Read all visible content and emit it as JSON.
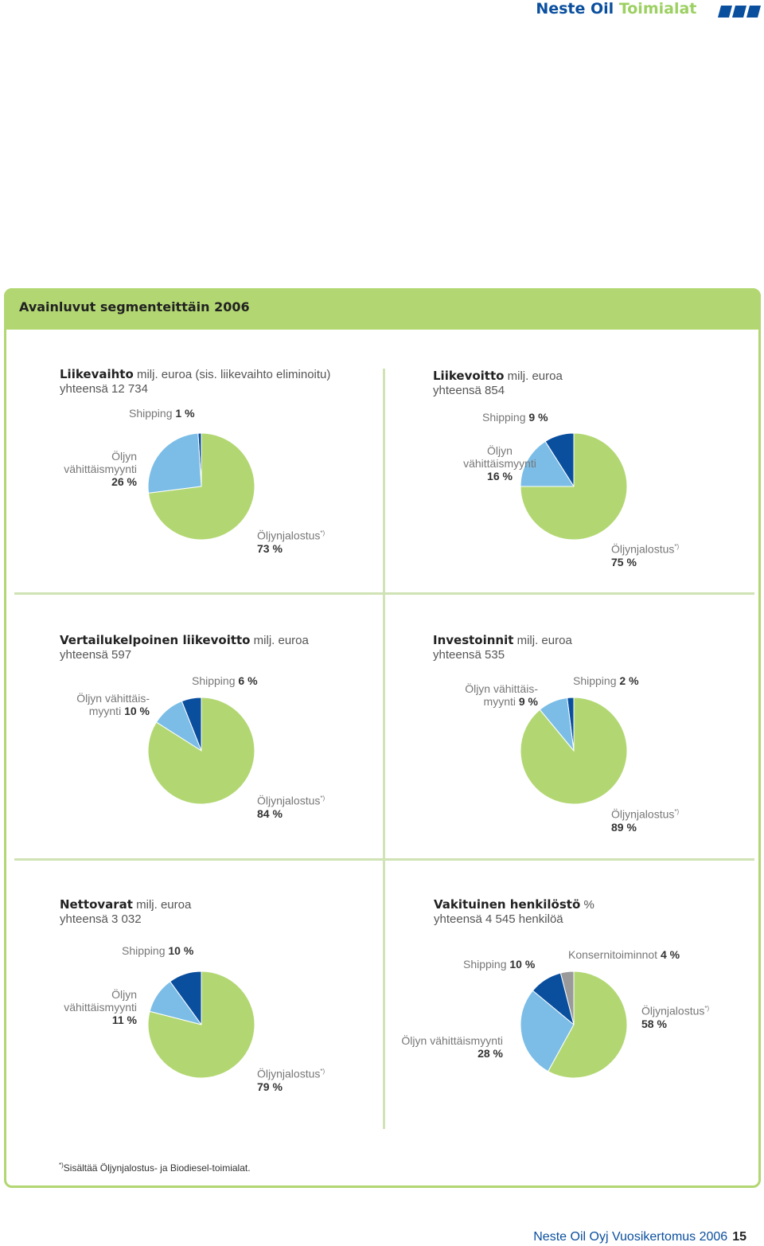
{
  "header": {
    "brand": "Neste Oil",
    "section": "Toimialat"
  },
  "panel_title": "Avainluvut segmenteittäin 2006",
  "chart_data": [
    {
      "type": "pie",
      "title": "Liikevaihto",
      "unit": "milj. euroa (sis. liikevaihto eliminoitu)",
      "total_label": "yhteensä 12 734",
      "slices": [
        {
          "name": "Shipping",
          "label1": "Shipping",
          "label2": "",
          "pct_label": "1 %",
          "value": 1,
          "color": "#0a4f9e"
        },
        {
          "name": "Öljyn vähittäismyynti",
          "label1": "Öljyn",
          "label2": "vähittäismyynti",
          "pct_label": "26 %",
          "value": 26,
          "color": "#7bbde6"
        },
        {
          "name": "Öljynjalostus",
          "label1": "Öljynjalostus",
          "label2": "",
          "pct_label": "73 %",
          "value": 73,
          "color": "#b2d772",
          "sup": "*)"
        }
      ]
    },
    {
      "type": "pie",
      "title": "Liikevoitto",
      "unit": "milj. euroa",
      "total_label": "yhteensä 854",
      "slices": [
        {
          "name": "Shipping",
          "label1": "Shipping",
          "label2": "",
          "pct_label": "9 %",
          "value": 9,
          "color": "#0a4f9e"
        },
        {
          "name": "Öljyn vähittäismyynti",
          "label1": "Öljyn",
          "label2": "vähittäismyynti",
          "pct_label": "16 %",
          "value": 16,
          "color": "#7bbde6"
        },
        {
          "name": "Öljynjalostus",
          "label1": "Öljynjalostus",
          "label2": "",
          "pct_label": "75 %",
          "value": 75,
          "color": "#b2d772",
          "sup": "*)"
        }
      ]
    },
    {
      "type": "pie",
      "title": "Vertailukelpoinen liikevoitto",
      "unit": "milj. euroa",
      "total_label": "yhteensä 597",
      "slices": [
        {
          "name": "Shipping",
          "label1": "Shipping",
          "label2": "",
          "pct_label": "6 %",
          "value": 6,
          "color": "#0a4f9e"
        },
        {
          "name": "Öljyn vähittäismyynti",
          "label1": "Öljyn vähittäis-",
          "label2": "myynti",
          "pct_label": "10 %",
          "value": 10,
          "color": "#7bbde6"
        },
        {
          "name": "Öljynjalostus",
          "label1": "Öljynjalostus",
          "label2": "",
          "pct_label": "84 %",
          "value": 84,
          "color": "#b2d772",
          "sup": "*)"
        }
      ]
    },
    {
      "type": "pie",
      "title": "Investoinnit",
      "unit": "milj. euroa",
      "total_label": "yhteensä 535",
      "slices": [
        {
          "name": "Shipping",
          "label1": "Shipping",
          "label2": "",
          "pct_label": "2 %",
          "value": 2,
          "color": "#0a4f9e"
        },
        {
          "name": "Öljyn vähittäismyynti",
          "label1": "Öljyn vähittäis-",
          "label2": "myynti",
          "pct_label": "9 %",
          "value": 9,
          "color": "#7bbde6"
        },
        {
          "name": "Öljynjalostus",
          "label1": "Öljynjalostus",
          "label2": "",
          "pct_label": "89 %",
          "value": 89,
          "color": "#b2d772",
          "sup": "*)"
        }
      ]
    },
    {
      "type": "pie",
      "title": "Nettovarat",
      "unit": "milj. euroa",
      "total_label": "yhteensä 3 032",
      "slices": [
        {
          "name": "Shipping",
          "label1": "Shipping",
          "label2": "",
          "pct_label": "10 %",
          "value": 10,
          "color": "#0a4f9e"
        },
        {
          "name": "Öljyn vähittäismyynti",
          "label1": "Öljyn",
          "label2": "vähittäismyynti",
          "pct_label": "11 %",
          "value": 11,
          "color": "#7bbde6"
        },
        {
          "name": "Öljynjalostus",
          "label1": "Öljynjalostus",
          "label2": "",
          "pct_label": "79 %",
          "value": 79,
          "color": "#b2d772",
          "sup": "*)"
        }
      ]
    },
    {
      "type": "pie",
      "title": "Vakituinen henkilöstö",
      "unit": "%",
      "total_label": "yhteensä 4 545 henkilöä",
      "slices": [
        {
          "name": "Konsernitoiminnot",
          "label1": "Konsernitoiminnot",
          "label2": "",
          "pct_label": "4 %",
          "value": 4,
          "color": "#9a9a9a"
        },
        {
          "name": "Shipping",
          "label1": "Shipping",
          "label2": "",
          "pct_label": "10 %",
          "value": 10,
          "color": "#0a4f9e"
        },
        {
          "name": "Öljyn vähittäismyynti",
          "label1": "Öljyn vähittäismyynti",
          "label2": "",
          "pct_label": "28 %",
          "value": 28,
          "color": "#7bbde6"
        },
        {
          "name": "Öljynjalostus",
          "label1": "Öljynjalostus",
          "label2": "",
          "pct_label": "58 %",
          "value": 58,
          "color": "#b2d772",
          "sup": "*)"
        }
      ]
    }
  ],
  "footnote": {
    "sup": "*)",
    "text": "Sisältää Öljynjalostus- ja Biodiesel-toimialat."
  },
  "footer": {
    "text": "Neste Oil Oyj Vuosikertomus 2006",
    "page": "15"
  }
}
